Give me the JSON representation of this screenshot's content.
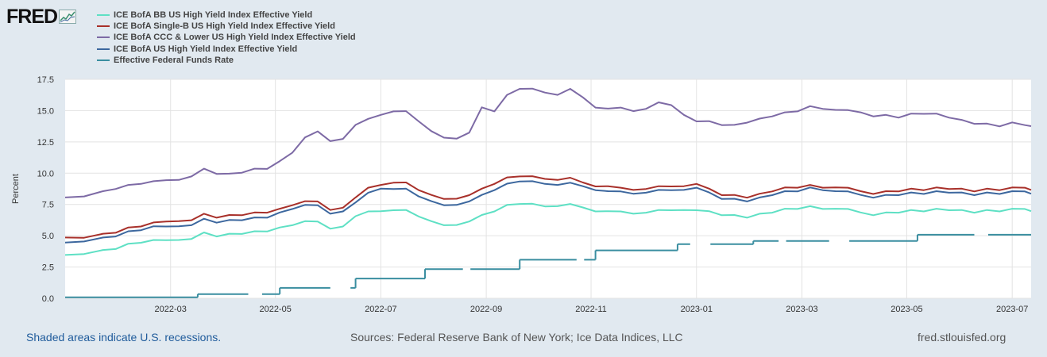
{
  "brand": {
    "name": "FRED"
  },
  "colors": {
    "background": "#e1e9f0",
    "plot_bg": "#ffffff",
    "grid": "#e3e3e3",
    "axis_text": "#333333"
  },
  "footer": {
    "recessions_note": "Shaded areas indicate U.S. recessions.",
    "sources": "Sources: Federal Reserve Bank of New York; Ice Data Indices, LLC",
    "site": "fred.stlouisfed.org"
  },
  "chart_data": {
    "type": "line",
    "title": "",
    "xlabel": "",
    "ylabel": "Percent",
    "ylim": [
      0,
      17.5
    ],
    "yticks": [
      "0.0",
      "2.5",
      "5.0",
      "7.5",
      "10.0",
      "12.5",
      "15.0",
      "17.5"
    ],
    "xlim": [
      2022.0,
      2023.53
    ],
    "xticks": [
      {
        "label": "2022-03",
        "x": 2022.167
      },
      {
        "label": "2022-05",
        "x": 2022.333
      },
      {
        "label": "2022-07",
        "x": 2022.5
      },
      {
        "label": "2022-09",
        "x": 2022.667
      },
      {
        "label": "2022-11",
        "x": 2022.833
      },
      {
        "label": "2023-01",
        "x": 2023.0
      },
      {
        "label": "2023-03",
        "x": 2023.167
      },
      {
        "label": "2023-05",
        "x": 2023.333
      },
      {
        "label": "2023-07",
        "x": 2023.5
      }
    ],
    "grid": true,
    "legend_position": "top-left",
    "series": [
      {
        "name": "ICE BofA BB US High Yield Index Effective Yield",
        "color": "#5ee0c4",
        "style": "solid",
        "x": [
          2022.0,
          2022.03,
          2022.06,
          2022.08,
          2022.1,
          2022.12,
          2022.14,
          2022.16,
          2022.18,
          2022.2,
          2022.22,
          2022.24,
          2022.26,
          2022.28,
          2022.3,
          2022.32,
          2022.34,
          2022.36,
          2022.38,
          2022.4,
          2022.42,
          2022.44,
          2022.46,
          2022.48,
          2022.5,
          2022.52,
          2022.54,
          2022.56,
          2022.58,
          2022.6,
          2022.62,
          2022.64,
          2022.66,
          2022.68,
          2022.7,
          2022.72,
          2022.74,
          2022.76,
          2022.78,
          2022.8,
          2022.82,
          2022.84,
          2022.86,
          2022.88,
          2022.9,
          2022.92,
          2022.94,
          2022.96,
          2022.98,
          2023.0,
          2023.02,
          2023.04,
          2023.06,
          2023.08,
          2023.1,
          2023.12,
          2023.14,
          2023.16,
          2023.18,
          2023.2,
          2023.22,
          2023.24,
          2023.26,
          2023.28,
          2023.3,
          2023.32,
          2023.34,
          2023.36,
          2023.38,
          2023.4,
          2023.42,
          2023.44,
          2023.46,
          2023.48,
          2023.5,
          2023.52,
          2023.53
        ],
        "values": [
          3.4,
          3.6,
          3.8,
          4.0,
          4.3,
          4.5,
          4.6,
          4.7,
          4.6,
          4.8,
          5.2,
          5.0,
          5.1,
          5.2,
          5.3,
          5.4,
          5.6,
          5.9,
          6.1,
          6.2,
          5.5,
          5.8,
          6.5,
          7.0,
          6.9,
          7.1,
          7.0,
          6.6,
          6.1,
          5.9,
          5.8,
          6.2,
          6.6,
          7.0,
          7.4,
          7.6,
          7.5,
          7.4,
          7.3,
          7.6,
          7.2,
          7.0,
          6.9,
          7.0,
          6.7,
          6.9,
          7.0,
          7.1,
          7.0,
          7.1,
          6.9,
          6.7,
          6.6,
          6.5,
          6.7,
          6.9,
          7.1,
          7.2,
          7.3,
          7.2,
          7.1,
          7.2,
          6.8,
          6.7,
          6.8,
          6.9,
          7.0,
          7.0,
          7.1,
          7.1,
          7.0,
          6.9,
          7.0,
          7.0,
          7.1,
          7.2,
          6.9
        ]
      },
      {
        "name": "ICE BofA Single-B US High Yield Index Effective Yield",
        "color": "#a8302a",
        "style": "solid",
        "x": [
          2022.0,
          2022.03,
          2022.06,
          2022.08,
          2022.1,
          2022.12,
          2022.14,
          2022.16,
          2022.18,
          2022.2,
          2022.22,
          2022.24,
          2022.26,
          2022.28,
          2022.3,
          2022.32,
          2022.34,
          2022.36,
          2022.38,
          2022.4,
          2022.42,
          2022.44,
          2022.46,
          2022.48,
          2022.5,
          2022.52,
          2022.54,
          2022.56,
          2022.58,
          2022.6,
          2022.62,
          2022.64,
          2022.66,
          2022.68,
          2022.7,
          2022.72,
          2022.74,
          2022.76,
          2022.78,
          2022.8,
          2022.82,
          2022.84,
          2022.86,
          2022.88,
          2022.9,
          2022.92,
          2022.94,
          2022.96,
          2022.98,
          2023.0,
          2023.02,
          2023.04,
          2023.06,
          2023.08,
          2023.1,
          2023.12,
          2023.14,
          2023.16,
          2023.18,
          2023.2,
          2023.22,
          2023.24,
          2023.26,
          2023.28,
          2023.3,
          2023.32,
          2023.34,
          2023.36,
          2023.38,
          2023.4,
          2023.42,
          2023.44,
          2023.46,
          2023.48,
          2023.5,
          2023.52,
          2023.53
        ],
        "values": [
          4.8,
          4.9,
          5.1,
          5.3,
          5.6,
          5.8,
          6.0,
          6.2,
          6.1,
          6.3,
          6.7,
          6.5,
          6.6,
          6.7,
          6.8,
          6.9,
          7.1,
          7.5,
          7.7,
          7.8,
          7.0,
          7.3,
          8.0,
          8.9,
          9.0,
          9.3,
          9.2,
          8.7,
          8.2,
          8.0,
          7.9,
          8.3,
          8.7,
          9.2,
          9.6,
          9.8,
          9.7,
          9.6,
          9.4,
          9.7,
          9.2,
          9.0,
          8.9,
          8.9,
          8.6,
          8.8,
          8.9,
          9.0,
          8.9,
          9.2,
          8.7,
          8.3,
          8.2,
          8.1,
          8.3,
          8.6,
          8.8,
          8.9,
          9.0,
          8.9,
          8.8,
          8.9,
          8.5,
          8.4,
          8.5,
          8.6,
          8.7,
          8.7,
          8.8,
          8.8,
          8.7,
          8.6,
          8.7,
          8.7,
          8.8,
          8.9,
          8.6
        ]
      },
      {
        "name": "ICE BofA CCC & Lower US High Yield Index Effective Yield",
        "color": "#7d6aa5",
        "style": "solid",
        "x": [
          2022.0,
          2022.03,
          2022.06,
          2022.08,
          2022.1,
          2022.12,
          2022.14,
          2022.16,
          2022.18,
          2022.2,
          2022.22,
          2022.24,
          2022.26,
          2022.28,
          2022.3,
          2022.32,
          2022.34,
          2022.36,
          2022.38,
          2022.4,
          2022.42,
          2022.44,
          2022.46,
          2022.48,
          2022.5,
          2022.52,
          2022.54,
          2022.56,
          2022.58,
          2022.6,
          2022.62,
          2022.64,
          2022.66,
          2022.68,
          2022.7,
          2022.72,
          2022.74,
          2022.76,
          2022.78,
          2022.8,
          2022.82,
          2022.84,
          2022.86,
          2022.88,
          2022.9,
          2022.92,
          2022.94,
          2022.96,
          2022.98,
          2023.0,
          2023.02,
          2023.04,
          2023.06,
          2023.08,
          2023.1,
          2023.12,
          2023.14,
          2023.16,
          2023.18,
          2023.2,
          2023.22,
          2023.24,
          2023.26,
          2023.28,
          2023.3,
          2023.32,
          2023.34,
          2023.36,
          2023.38,
          2023.4,
          2023.42,
          2023.44,
          2023.46,
          2023.48,
          2023.5,
          2023.52,
          2023.53
        ],
        "values": [
          8.0,
          8.2,
          8.5,
          8.8,
          9.0,
          9.2,
          9.3,
          9.5,
          9.4,
          9.8,
          10.3,
          10.0,
          9.9,
          10.1,
          10.3,
          10.4,
          10.9,
          11.7,
          12.8,
          13.4,
          12.5,
          12.8,
          13.8,
          14.4,
          14.6,
          15.0,
          14.9,
          14.2,
          13.3,
          12.9,
          12.7,
          13.3,
          15.2,
          15.0,
          16.2,
          16.8,
          16.7,
          16.5,
          16.2,
          16.8,
          16.0,
          15.3,
          15.1,
          15.3,
          14.9,
          15.2,
          15.6,
          15.5,
          14.6,
          14.2,
          14.1,
          13.9,
          13.8,
          14.1,
          14.3,
          14.6,
          14.8,
          15.0,
          15.3,
          15.2,
          15.0,
          15.1,
          14.8,
          14.6,
          14.6,
          14.5,
          14.7,
          14.8,
          14.7,
          14.5,
          14.2,
          14.0,
          13.9,
          13.8,
          14.0,
          13.9,
          13.7
        ]
      },
      {
        "name": "ICE BofA US High Yield Index Effective Yield",
        "color": "#3c679e",
        "style": "solid",
        "x": [
          2022.0,
          2022.03,
          2022.06,
          2022.08,
          2022.1,
          2022.12,
          2022.14,
          2022.16,
          2022.18,
          2022.2,
          2022.22,
          2022.24,
          2022.26,
          2022.28,
          2022.3,
          2022.32,
          2022.34,
          2022.36,
          2022.38,
          2022.4,
          2022.42,
          2022.44,
          2022.46,
          2022.48,
          2022.5,
          2022.52,
          2022.54,
          2022.56,
          2022.58,
          2022.6,
          2022.62,
          2022.64,
          2022.66,
          2022.68,
          2022.7,
          2022.72,
          2022.74,
          2022.76,
          2022.78,
          2022.8,
          2022.82,
          2022.84,
          2022.86,
          2022.88,
          2022.9,
          2022.92,
          2022.94,
          2022.96,
          2022.98,
          2023.0,
          2023.02,
          2023.04,
          2023.06,
          2023.08,
          2023.1,
          2023.12,
          2023.14,
          2023.16,
          2023.18,
          2023.2,
          2023.22,
          2023.24,
          2023.26,
          2023.28,
          2023.3,
          2023.32,
          2023.34,
          2023.36,
          2023.38,
          2023.4,
          2023.42,
          2023.44,
          2023.46,
          2023.48,
          2023.5,
          2023.52,
          2023.53
        ],
        "values": [
          4.4,
          4.6,
          4.8,
          5.0,
          5.3,
          5.5,
          5.7,
          5.8,
          5.7,
          5.9,
          6.3,
          6.1,
          6.2,
          6.3,
          6.4,
          6.5,
          6.8,
          7.2,
          7.4,
          7.5,
          6.7,
          7.0,
          7.6,
          8.5,
          8.7,
          8.8,
          8.7,
          8.2,
          7.7,
          7.5,
          7.4,
          7.8,
          8.2,
          8.7,
          9.1,
          9.4,
          9.3,
          9.2,
          9.0,
          9.3,
          8.9,
          8.7,
          8.5,
          8.6,
          8.3,
          8.5,
          8.6,
          8.7,
          8.6,
          8.9,
          8.4,
          8.0,
          7.9,
          7.8,
          8.0,
          8.3,
          8.5,
          8.6,
          8.8,
          8.7,
          8.5,
          8.6,
          8.2,
          8.1,
          8.2,
          8.3,
          8.4,
          8.4,
          8.5,
          8.5,
          8.4,
          8.3,
          8.4,
          8.4,
          8.5,
          8.6,
          8.3
        ]
      },
      {
        "name": "Effective Federal Funds Rate",
        "color": "#3a8ea0",
        "style": "step-dashed",
        "x": [
          2022.0,
          2022.21,
          2022.21,
          2022.34,
          2022.34,
          2022.46,
          2022.46,
          2022.57,
          2022.57,
          2022.72,
          2022.72,
          2022.84,
          2022.84,
          2022.97,
          2022.97,
          2023.09,
          2023.09,
          2023.35,
          2023.35,
          2023.53
        ],
        "values": [
          0.08,
          0.08,
          0.33,
          0.33,
          0.83,
          0.83,
          1.58,
          1.58,
          2.33,
          2.33,
          3.08,
          3.08,
          3.83,
          3.83,
          4.33,
          4.33,
          4.58,
          4.58,
          5.08,
          5.08
        ],
        "gaps": [
          [
            2022.29,
            2022.31
          ],
          [
            2022.42,
            2022.45
          ],
          [
            2022.63,
            2022.64
          ],
          [
            2022.81,
            2022.82
          ],
          [
            2022.99,
            2023.02
          ],
          [
            2023.13,
            2023.14
          ],
          [
            2023.21,
            2023.24
          ],
          [
            2023.44,
            2023.46
          ]
        ]
      }
    ]
  }
}
